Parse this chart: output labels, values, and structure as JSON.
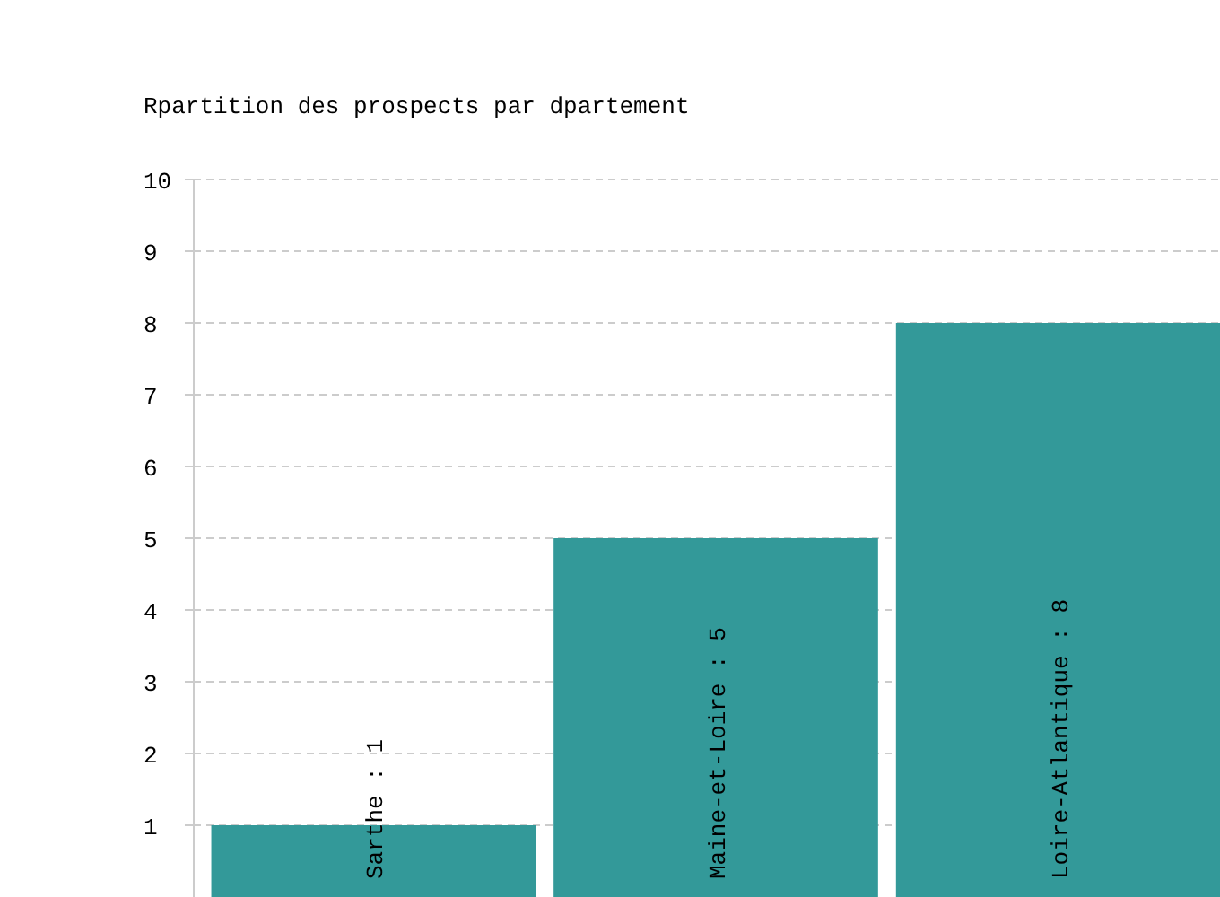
{
  "chart_data": {
    "type": "bar",
    "title": "Rpartition des prospects par dpartement",
    "categories": [
      null,
      null,
      null
    ],
    "values": [
      1,
      5,
      8
    ],
    "color": "#339999",
    "value_labels": [
      "Sarthe : 1",
      "Maine-et-Loire : 5",
      "Loire-Atlantique : 8"
    ],
    "ylim": [
      0,
      10
    ],
    "yticks": [
      1,
      2,
      3,
      4,
      5,
      6,
      7,
      8,
      9,
      10
    ],
    "grid": "y"
  }
}
